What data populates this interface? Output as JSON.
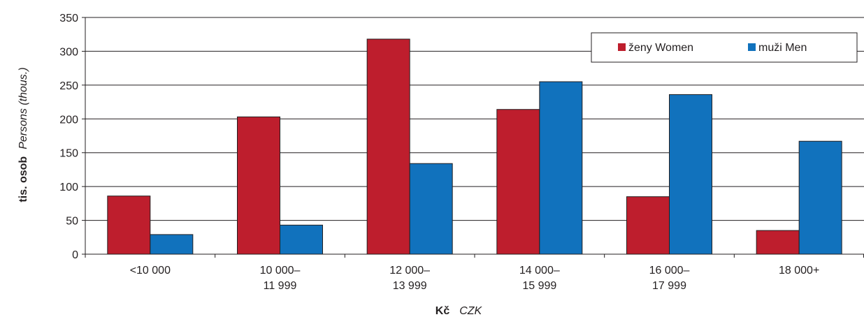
{
  "chart_data": {
    "type": "bar",
    "categories": [
      [
        "<10 000"
      ],
      [
        "10 000–",
        "11 999"
      ],
      [
        "12 000–",
        "13 999"
      ],
      [
        "14 000–",
        "15 999"
      ],
      [
        "16 000–",
        "17 999"
      ],
      [
        "18 000+"
      ]
    ],
    "series": [
      {
        "name": "ženy  Women",
        "color": "#be1e2d",
        "values": [
          86,
          203,
          318,
          214,
          85,
          35
        ]
      },
      {
        "name": "muži  Men",
        "color": "#1172bd",
        "values": [
          29,
          43,
          134,
          255,
          236,
          167
        ]
      }
    ],
    "ylim": [
      0,
      350
    ],
    "yticks": [
      0,
      50,
      100,
      150,
      200,
      250,
      300,
      350
    ],
    "ylabel_bold": "tis. osob",
    "ylabel_italic": "Persons (thous.)",
    "xlabel_bold": "Kč",
    "xlabel_italic": "CZK",
    "grid": true,
    "legend_position": "top-right"
  }
}
